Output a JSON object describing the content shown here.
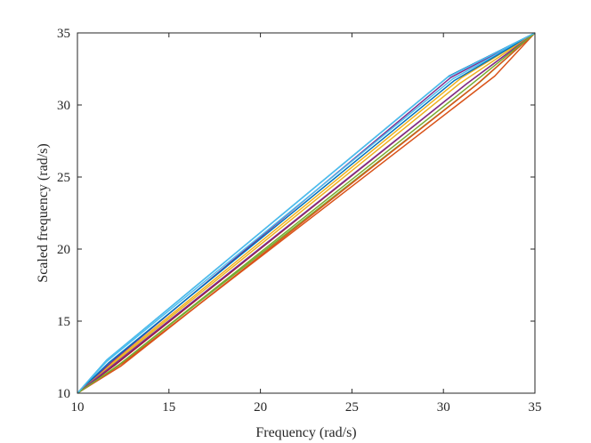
{
  "chart_data": {
    "type": "line",
    "title": "",
    "xlabel": "Frequency (rad/s)",
    "ylabel": "Scaled frequency (rad/s)",
    "xlim": [
      10,
      35
    ],
    "ylim": [
      10,
      35
    ],
    "xticks": [
      "10",
      "15",
      "20",
      "25",
      "30",
      "35"
    ],
    "yticks": [
      "10",
      "15",
      "20",
      "25",
      "30",
      "35"
    ],
    "grid": false,
    "legend": "none",
    "series": [
      {
        "color": "#0072BD",
        "x": [
          10,
          11.6,
          30.3,
          35
        ],
        "y": [
          10,
          12.3,
          32.0,
          35
        ]
      },
      {
        "color": "#D95319",
        "x": [
          10,
          12.6,
          32.8,
          35
        ],
        "y": [
          10,
          12.2,
          32.0,
          35
        ]
      },
      {
        "color": "#EDB120",
        "x": [
          10,
          11.8,
          31.0,
          35
        ],
        "y": [
          10,
          12.0,
          31.9,
          35
        ]
      },
      {
        "color": "#7E2F8E",
        "x": [
          10,
          11.9,
          30.4,
          35
        ],
        "y": [
          10,
          12.2,
          31.9,
          35
        ]
      },
      {
        "color": "#77AC30",
        "x": [
          10,
          12.3,
          32.0,
          35
        ],
        "y": [
          10,
          12.0,
          31.6,
          35
        ]
      },
      {
        "color": "#4DBEEE",
        "x": [
          10,
          11.6,
          30.5,
          35
        ],
        "y": [
          10,
          12.2,
          31.8,
          35
        ]
      },
      {
        "color": "#A2142F",
        "x": [
          10,
          12.1,
          31.3,
          35
        ],
        "y": [
          10,
          12.0,
          31.5,
          35
        ]
      },
      {
        "color": "#0072BD",
        "x": [
          10,
          11.7,
          30.6,
          35
        ],
        "y": [
          10,
          12.1,
          31.7,
          35
        ]
      },
      {
        "color": "#D95319",
        "x": [
          10,
          12.4,
          31.8,
          35
        ],
        "y": [
          10,
          11.9,
          31.4,
          35
        ]
      },
      {
        "color": "#EDB120",
        "x": [
          10,
          11.9,
          30.9,
          35
        ],
        "y": [
          10,
          12.0,
          31.5,
          35
        ]
      },
      {
        "color": "#7E2F8E",
        "x": [
          10,
          12.0,
          31.2,
          35
        ],
        "y": [
          10,
          12.0,
          31.4,
          35
        ]
      },
      {
        "color": "#77AC30",
        "x": [
          10,
          12.2,
          31.4,
          35
        ],
        "y": [
          10,
          11.9,
          31.3,
          35
        ]
      },
      {
        "color": "#4DBEEE",
        "x": [
          10,
          11.6,
          30.2,
          35
        ],
        "y": [
          10,
          12.3,
          31.9,
          35
        ]
      }
    ]
  }
}
